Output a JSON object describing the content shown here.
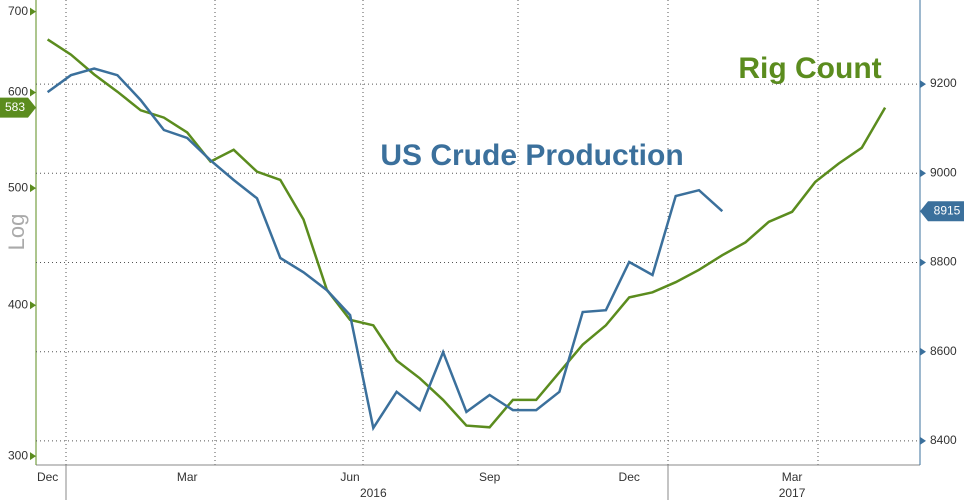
{
  "chart_data": {
    "type": "line",
    "y_axis_label": "Log",
    "categories": [
      "Dec",
      null,
      null,
      null,
      null,
      null,
      "Mar",
      null,
      null,
      null,
      null,
      null,
      null,
      "Jun",
      null,
      null,
      null,
      null,
      null,
      "Sep",
      null,
      null,
      null,
      null,
      null,
      "Dec",
      null,
      null,
      null,
      null,
      null,
      null,
      "Mar",
      null,
      null,
      null,
      null,
      null
    ],
    "x_year_labels": [
      "2016",
      "2017"
    ],
    "series": [
      {
        "name": "Rig Count",
        "color": "#5b8c1e",
        "axis": "y",
        "values": [
          664,
          645,
          621,
          601,
          580,
          572,
          556,
          526,
          538,
          516,
          508,
          471,
          412,
          389,
          385,
          360,
          348,
          334,
          318,
          317,
          334,
          334,
          352,
          371,
          385,
          406,
          410,
          418,
          428,
          440,
          451,
          469,
          478,
          506,
          524,
          540,
          583,
          null
        ]
      },
      {
        "name": "US Crude Production",
        "color": "#3b709c",
        "axis": "y2",
        "values": [
          9182,
          9220,
          9235,
          9220,
          9164,
          9097,
          9079,
          9029,
          8985,
          8944,
          8810,
          8778,
          8738,
          8682,
          8429,
          8510,
          8469,
          8599,
          8465,
          8503,
          8469,
          8469,
          8510,
          8689,
          8693,
          8801,
          8772,
          8949,
          8962,
          8915,
          null,
          null,
          null,
          null,
          null,
          null,
          null,
          null
        ]
      }
    ],
    "ylim": [
      295,
      713
    ],
    "yticks": [
      300,
      400,
      500,
      600,
      700
    ],
    "log_scale_y": true,
    "y2lim": [
      8346,
      9384
    ],
    "y2ticks": [
      8400,
      8600,
      8800,
      9000,
      9200
    ],
    "grid": true
  }
}
